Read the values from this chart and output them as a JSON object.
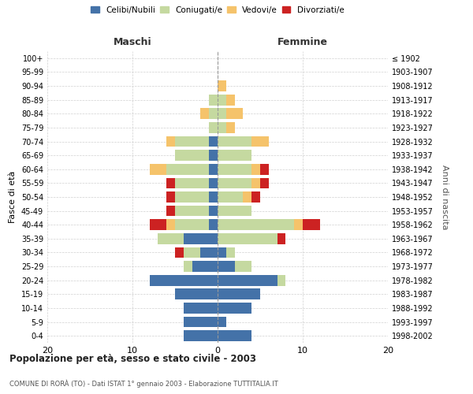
{
  "age_groups": [
    "0-4",
    "5-9",
    "10-14",
    "15-19",
    "20-24",
    "25-29",
    "30-34",
    "35-39",
    "40-44",
    "45-49",
    "50-54",
    "55-59",
    "60-64",
    "65-69",
    "70-74",
    "75-79",
    "80-84",
    "85-89",
    "90-94",
    "95-99",
    "100+"
  ],
  "birth_years": [
    "1998-2002",
    "1993-1997",
    "1988-1992",
    "1983-1987",
    "1978-1982",
    "1973-1977",
    "1968-1972",
    "1963-1967",
    "1958-1962",
    "1953-1957",
    "1948-1952",
    "1943-1947",
    "1938-1942",
    "1933-1937",
    "1928-1932",
    "1923-1927",
    "1918-1922",
    "1913-1917",
    "1908-1912",
    "1903-1907",
    "≤ 1902"
  ],
  "males": {
    "celibi": [
      4,
      4,
      4,
      5,
      8,
      3,
      2,
      4,
      1,
      1,
      1,
      1,
      1,
      1,
      1,
      0,
      0,
      0,
      0,
      0,
      0
    ],
    "coniugati": [
      0,
      0,
      0,
      0,
      0,
      1,
      2,
      3,
      4,
      4,
      4,
      4,
      5,
      4,
      4,
      1,
      1,
      1,
      0,
      0,
      0
    ],
    "vedovi": [
      0,
      0,
      0,
      0,
      0,
      0,
      0,
      0,
      1,
      0,
      0,
      0,
      2,
      0,
      1,
      0,
      1,
      0,
      0,
      0,
      0
    ],
    "divorziati": [
      0,
      0,
      0,
      0,
      0,
      0,
      1,
      0,
      2,
      1,
      1,
      1,
      0,
      0,
      0,
      0,
      0,
      0,
      0,
      0,
      0
    ]
  },
  "females": {
    "nubili": [
      4,
      1,
      4,
      5,
      7,
      2,
      1,
      0,
      0,
      0,
      0,
      0,
      0,
      0,
      0,
      0,
      0,
      0,
      0,
      0,
      0
    ],
    "coniugate": [
      0,
      0,
      0,
      0,
      1,
      2,
      1,
      7,
      9,
      4,
      3,
      4,
      4,
      4,
      4,
      1,
      1,
      1,
      0,
      0,
      0
    ],
    "vedove": [
      0,
      0,
      0,
      0,
      0,
      0,
      0,
      0,
      1,
      0,
      1,
      1,
      1,
      0,
      2,
      1,
      2,
      1,
      1,
      0,
      0
    ],
    "divorziate": [
      0,
      0,
      0,
      0,
      0,
      0,
      0,
      1,
      2,
      0,
      1,
      1,
      1,
      0,
      0,
      0,
      0,
      0,
      0,
      0,
      0
    ]
  },
  "colors": {
    "celibi": "#4472a8",
    "coniugati": "#c5d9a0",
    "vedovi": "#f5c36b",
    "divorziati": "#cc2222"
  },
  "title": "Popolazione per età, sesso e stato civile - 2003",
  "subtitle": "COMUNE DI RORÀ (TO) - Dati ISTAT 1° gennaio 2003 - Elaborazione TUTTITALIA.IT",
  "xlabel_left": "Maschi",
  "xlabel_right": "Femmine",
  "ylabel_left": "Fasce di età",
  "ylabel_right": "Anni di nascita",
  "xlim": 20,
  "legend_labels": [
    "Celibi/Nubili",
    "Coniugati/e",
    "Vedovi/e",
    "Divorziati/e"
  ],
  "background_color": "#ffffff",
  "grid_color": "#cccccc"
}
